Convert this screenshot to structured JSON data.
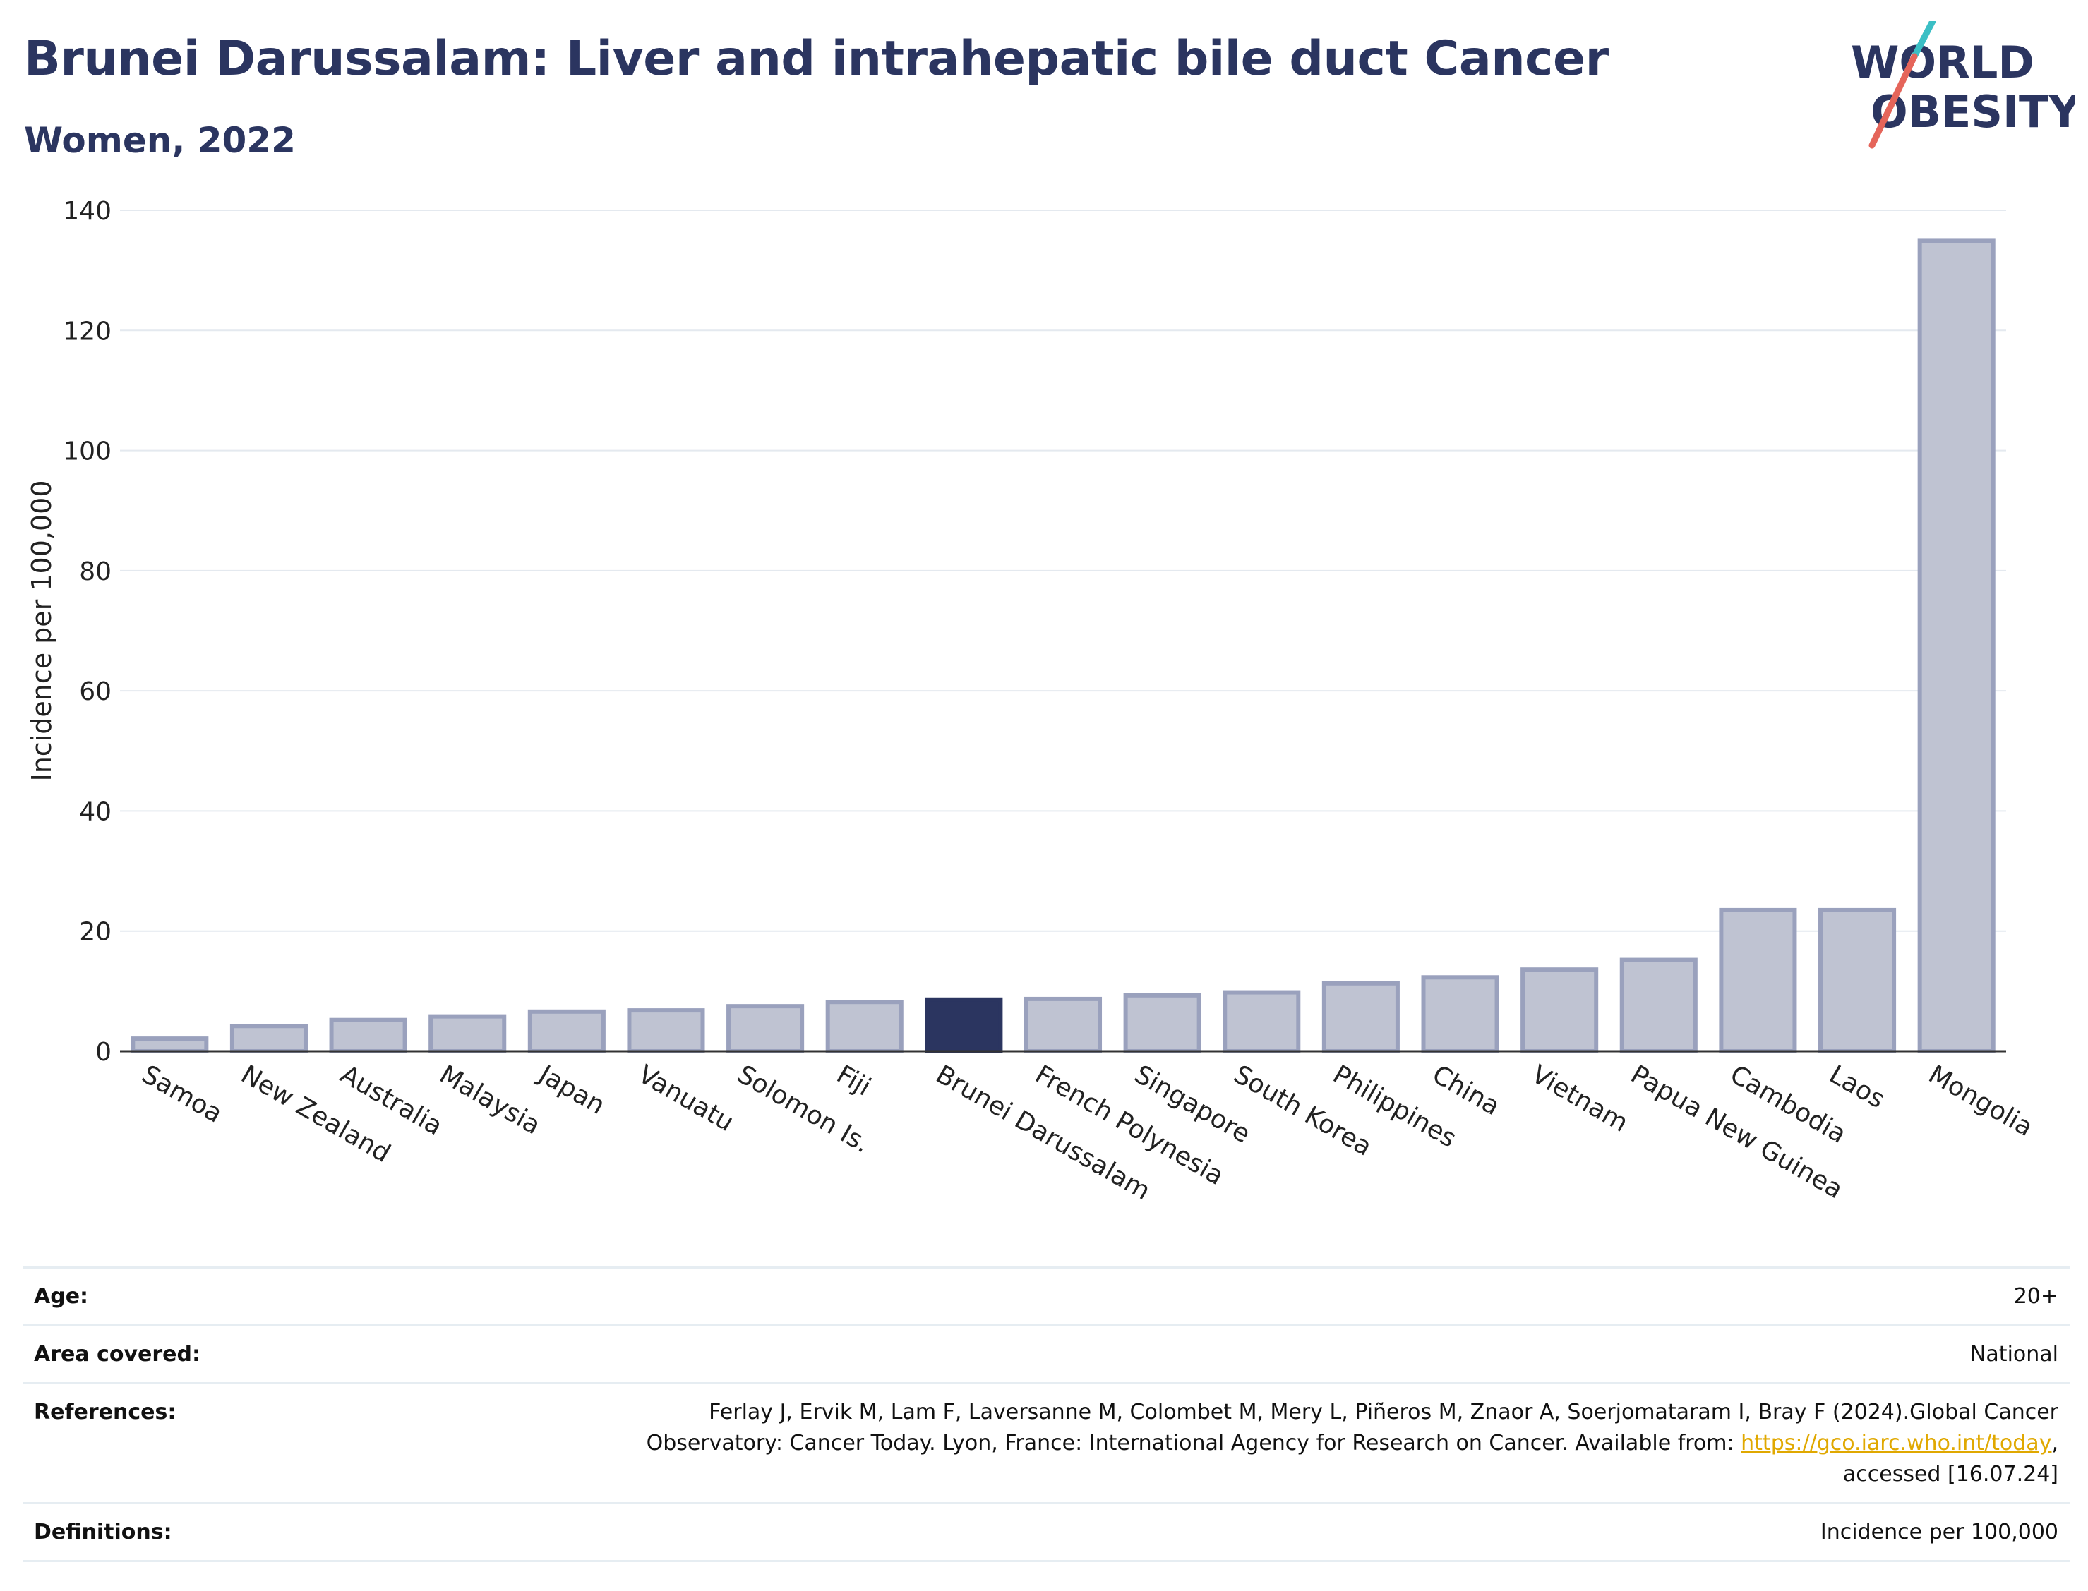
{
  "header": {
    "title": "Brunei Darussalam: Liver and intrahepatic bile duct Cancer",
    "subtitle": "Women, 2022"
  },
  "logo": {
    "line1": "WORLD",
    "line2": "OBESITY",
    "accent_teal": "#3bbfc5",
    "accent_red": "#e5655a",
    "text_color": "#2b3560"
  },
  "chart_data": {
    "type": "bar",
    "title": "Brunei Darussalam: Liver and intrahepatic bile duct Cancer",
    "subtitle": "Women, 2022",
    "xlabel": "",
    "ylabel": "Incidence per 100,000",
    "ylim": [
      0,
      140
    ],
    "yticks": [
      0,
      20,
      40,
      60,
      80,
      100,
      120,
      140
    ],
    "grid": true,
    "highlight": "Brunei Darussalam",
    "colors": {
      "bar": "#bfc3d2",
      "bar_edge": "#9aa1bd",
      "highlight": "#2b3560"
    },
    "categories": [
      "Samoa",
      "New Zealand",
      "Australia",
      "Malaysia",
      "Japan",
      "Vanuatu",
      "Solomon Is.",
      "Fiji",
      "Brunei Darussalam",
      "French Polynesia",
      "Singapore",
      "South Korea",
      "Philippines",
      "China",
      "Vietnam",
      "Papua New Guinea",
      "Cambodia",
      "Laos",
      "Mongolia"
    ],
    "values": [
      2.1,
      4.2,
      5.2,
      5.8,
      6.6,
      6.8,
      7.5,
      8.2,
      8.6,
      8.7,
      9.3,
      9.8,
      11.3,
      12.3,
      13.6,
      15.2,
      23.5,
      23.5,
      134.9
    ]
  },
  "meta": {
    "age_label": "Age:",
    "age_value": "20+",
    "area_label": "Area covered:",
    "area_value": "National",
    "references_label": "References:",
    "references_line1": "Ferlay J, Ervik M, Lam F, Laversanne M, Colombet M, Mery L, Piñeros M, Znaor A, Soerjomataram I, Bray F (2024).Global Cancer",
    "references_line2_pre": "Observatory: Cancer Today. Lyon, France: International Agency for Research on Cancer. Available from: ",
    "references_link": "https://gco.iarc.who.int/today",
    "references_line2_post": ",",
    "references_line3": "accessed [16.07.24]",
    "definitions_label": "Definitions:",
    "definitions_value": "Incidence per 100,000"
  }
}
